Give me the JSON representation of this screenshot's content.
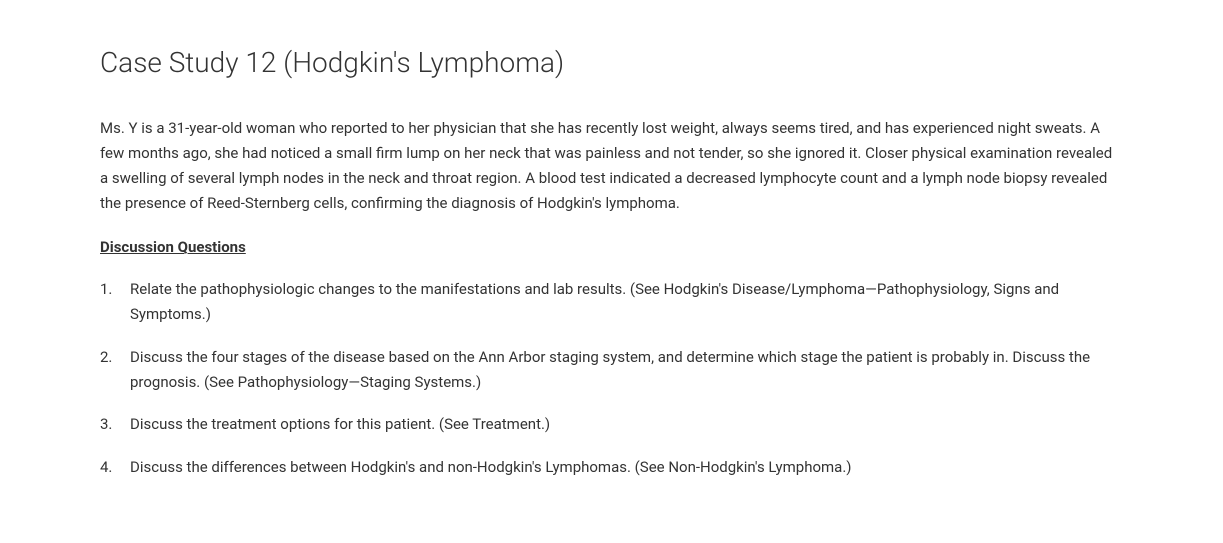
{
  "title": "Case Study 12 (Hodgkin's Lymphoma)",
  "case_paragraph": "Ms. Y is a 31-year-old woman who reported to her physician that she has recently lost weight, always seems tired, and has experienced night sweats. A few months ago, she had noticed a small firm lump on her neck that was painless and not tender, so she ignored it. Closer physical examination revealed a swelling of several lymph nodes in the neck and throat region. A blood test indicated a decreased lymphocyte count and a lymph node biopsy revealed the presence of Reed-Sternberg cells, confirming the diagnosis of Hodgkin's lymphoma.",
  "discussion_heading": "Discussion Questions",
  "questions": [
    {
      "number": "1.",
      "text": "Relate the pathophysiologic changes to the manifestations and lab results. (See Hodgkin's Disease/Lymphoma—Pathophysiology, Signs and Symptoms.)"
    },
    {
      "number": "2.",
      "text": "Discuss the four stages of the disease based on the Ann Arbor staging system, and determine which stage the patient is probably in. Discuss the prognosis. (See Pathophysiology—Staging Systems.)"
    },
    {
      "number": "3.",
      "text": "Discuss the treatment options for this patient. (See Treatment.)"
    },
    {
      "number": "4.",
      "text": "Discuss the differences between Hodgkin's and non-Hodgkin's Lymphomas. (See Non-Hodgkin's Lymphoma.)"
    }
  ],
  "style": {
    "background_color": "#ffffff",
    "text_color": "#333333",
    "title_fontsize": 28,
    "title_fontweight": 300,
    "body_fontsize": 15,
    "heading_fontweight": 700,
    "font_family": "Segoe UI"
  }
}
